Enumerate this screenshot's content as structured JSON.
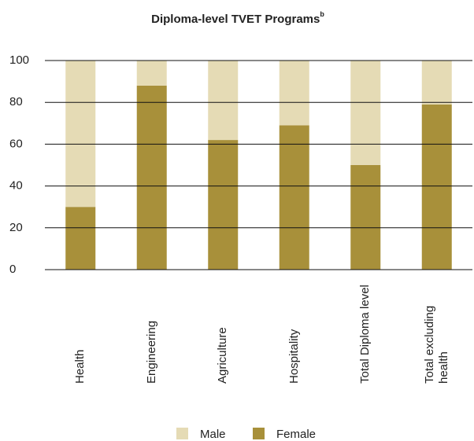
{
  "chart_data": {
    "type": "stacked_bar",
    "title": "Diploma-level TVET Programs",
    "title_superscript": "b",
    "categories": [
      "Health",
      "Engineering",
      "Agriculture",
      "Hospitality",
      "Total Diploma level",
      "Total excluding health"
    ],
    "series": [
      {
        "name": "Female",
        "color": "#a8903a",
        "values": [
          30,
          88,
          62,
          69,
          50,
          79
        ]
      },
      {
        "name": "Male",
        "color": "#e5dbb5",
        "values": [
          70,
          12,
          38,
          31,
          50,
          21
        ]
      }
    ],
    "legend_order": [
      "Male",
      "Female"
    ],
    "ylim": [
      0,
      100
    ],
    "yticks": [
      0,
      20,
      40,
      60,
      80,
      100
    ],
    "grid": true,
    "legend": "bottom"
  }
}
